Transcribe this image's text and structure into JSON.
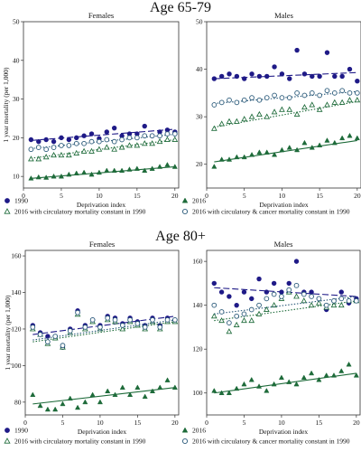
{
  "figure": {
    "sections": [
      {
        "title": "Age 65-79",
        "chart_index_start": 0
      },
      {
        "title": "Age 80+",
        "chart_index_start": 2
      }
    ],
    "legend": {
      "items": [
        {
          "key": "1990",
          "label": "1990",
          "marker": "filled-circle",
          "color": "#1f1a87"
        },
        {
          "key": "2016",
          "label": "2016",
          "marker": "filled-triangle",
          "color": "#1e6b3a"
        },
        {
          "key": "2016_circ",
          "label": "2016 with circulatory mortality constant in 1990",
          "marker": "open-triangle",
          "color": "#1e6b3a"
        },
        {
          "key": "2016_circ_cancer",
          "label": "2016 with circulatory & cancer mortality constant in 1990",
          "marker": "open-circle",
          "color": "#2a5a7a"
        }
      ]
    }
  },
  "chart_data": [
    {
      "type": "scatter",
      "section": "Age 65-79",
      "title": "Females",
      "xlabel": "Deprivation index",
      "ylabel": "1 year mortality (per 1,000)",
      "xlim": [
        0,
        20.5
      ],
      "ylim": [
        7,
        50
      ],
      "xticks": [
        0,
        5,
        10,
        15,
        20
      ],
      "yticks": [
        10,
        20,
        30,
        40,
        50
      ],
      "x": [
        1,
        2,
        3,
        4,
        5,
        6,
        7,
        8,
        9,
        10,
        11,
        12,
        13,
        14,
        15,
        16,
        17,
        18,
        19,
        20
      ],
      "series": [
        {
          "name": "1990",
          "values": [
            19.5,
            19.0,
            19.5,
            19.0,
            20.0,
            19.5,
            20.0,
            20.5,
            21.0,
            19.8,
            21.5,
            22.5,
            20.5,
            21.0,
            21.0,
            23.0,
            20.5,
            21.5,
            22.0,
            21.5
          ],
          "trend": [
            19.3,
            22.2
          ]
        },
        {
          "name": "2016",
          "values": [
            9.5,
            9.8,
            9.7,
            10.0,
            10.0,
            10.5,
            10.8,
            11.0,
            10.5,
            11.0,
            11.5,
            11.5,
            11.5,
            11.8,
            12.0,
            11.5,
            12.0,
            12.5,
            13.0,
            12.5
          ],
          "trend": [
            9.5,
            12.5
          ]
        },
        {
          "name": "2016 with circulatory mortality constant in 1990",
          "values": [
            14.5,
            14.5,
            15.0,
            15.5,
            15.5,
            15.5,
            16.0,
            16.5,
            16.5,
            17.0,
            17.5,
            17.0,
            17.5,
            18.0,
            18.0,
            18.5,
            18.5,
            19.0,
            19.5,
            19.5
          ],
          "trend": [
            14.7,
            19.5
          ]
        },
        {
          "name": "2016 with circulatory & cancer mortality constant in 1990",
          "values": [
            17.0,
            17.5,
            17.0,
            17.5,
            18.0,
            18.0,
            18.5,
            18.5,
            19.0,
            19.0,
            19.5,
            19.0,
            19.5,
            20.0,
            20.0,
            20.5,
            20.5,
            20.5,
            21.0,
            21.0
          ],
          "trend": [
            17.2,
            20.9
          ]
        }
      ]
    },
    {
      "type": "scatter",
      "section": "Age 65-79",
      "title": "Males",
      "xlabel": "Deprivation index",
      "ylabel": "",
      "xlim": [
        0,
        20.5
      ],
      "ylim": [
        15,
        50
      ],
      "xticks": [
        0,
        5,
        10,
        15,
        20
      ],
      "yticks": [
        20,
        30,
        40,
        50
      ],
      "x": [
        1,
        2,
        3,
        4,
        5,
        6,
        7,
        8,
        9,
        10,
        11,
        12,
        13,
        14,
        15,
        16,
        17,
        18,
        19,
        20
      ],
      "series": [
        {
          "name": "1990",
          "values": [
            38.0,
            38.5,
            39.0,
            38.5,
            38.0,
            39.0,
            38.5,
            38.5,
            40.5,
            39.0,
            38.0,
            44.0,
            39.0,
            38.5,
            38.5,
            43.5,
            38.5,
            38.5,
            40.0,
            37.5
          ],
          "trend": [
            38.0,
            39.3
          ]
        },
        {
          "name": "2016",
          "values": [
            19.5,
            21.0,
            21.0,
            21.5,
            21.5,
            22.0,
            22.5,
            22.5,
            22.0,
            23.0,
            23.5,
            23.0,
            24.5,
            23.5,
            24.0,
            25.0,
            24.5,
            25.5,
            26.0,
            25.5
          ],
          "trend": [
            20.5,
            25.0
          ]
        },
        {
          "name": "2016 with circulatory mortality constant in 1990",
          "values": [
            27.5,
            28.5,
            29.0,
            29.0,
            29.5,
            30.0,
            30.5,
            30.0,
            31.0,
            31.5,
            31.5,
            30.5,
            32.0,
            32.5,
            31.5,
            32.5,
            33.0,
            33.0,
            33.5,
            33.5
          ],
          "trend": [
            27.8,
            33.2
          ]
        },
        {
          "name": "2016 with circulatory & cancer mortality constant in 1990",
          "values": [
            32.5,
            33.0,
            33.5,
            33.0,
            33.5,
            34.0,
            33.5,
            34.0,
            34.5,
            34.0,
            34.0,
            35.0,
            34.5,
            35.0,
            34.5,
            35.5,
            35.0,
            35.5,
            35.0,
            35.0
          ],
          "trend": [
            32.8,
            35.3
          ]
        }
      ]
    },
    {
      "type": "scatter",
      "section": "Age 80+",
      "title": "Females",
      "xlabel": "Deprivation index",
      "ylabel": "1 year mortality (per 1,000)",
      "xlim": [
        0,
        20.5
      ],
      "ylim": [
        73,
        163
      ],
      "xticks": [
        0,
        5,
        10,
        15,
        20
      ],
      "yticks": [
        80,
        100,
        120,
        140,
        160
      ],
      "x": [
        1,
        2,
        3,
        4,
        5,
        6,
        7,
        8,
        9,
        10,
        11,
        12,
        13,
        14,
        15,
        16,
        17,
        18,
        19,
        20
      ],
      "series": [
        {
          "name": "1990",
          "values": [
            122,
            118,
            116,
            116,
            110,
            120,
            130,
            122,
            125,
            122,
            127,
            126,
            123,
            126,
            124,
            122,
            126,
            122,
            126,
            125
          ],
          "trend": [
            117,
            127
          ]
        },
        {
          "name": "2016",
          "values": [
            84,
            78,
            76,
            76,
            79,
            82,
            77,
            80,
            84,
            80,
            86,
            84,
            88,
            84,
            88,
            83,
            86,
            88,
            92,
            88
          ],
          "trend": [
            79,
            88
          ]
        },
        {
          "name": "2016 with circulatory mortality constant in 1990",
          "values": [
            120,
            117,
            112,
            115,
            110,
            118,
            128,
            120,
            124,
            120,
            125,
            124,
            120,
            124,
            122,
            120,
            124,
            120,
            124,
            124
          ],
          "trend": [
            113,
            124
          ]
        },
        {
          "name": "2016 with circulatory & cancer mortality constant in 1990",
          "values": [
            121,
            117,
            113,
            116,
            111,
            119,
            129,
            121,
            125,
            121,
            126,
            125,
            122,
            125,
            123,
            121,
            125,
            121,
            125,
            125
          ],
          "trend": [
            114,
            125
          ]
        }
      ]
    },
    {
      "type": "scatter",
      "section": "Age 80+",
      "title": "Males",
      "xlabel": "Deprivation index",
      "ylabel": "",
      "xlim": [
        0,
        20.5
      ],
      "ylim": [
        90,
        165
      ],
      "xticks": [
        0,
        5,
        10,
        15,
        20
      ],
      "yticks": [
        100,
        120,
        140,
        160
      ],
      "x": [
        1,
        2,
        3,
        4,
        5,
        6,
        7,
        8,
        9,
        10,
        11,
        12,
        13,
        14,
        15,
        16,
        17,
        18,
        19,
        20
      ],
      "series": [
        {
          "name": "1990",
          "values": [
            150,
            146,
            144,
            140,
            146,
            143,
            152,
            146,
            150,
            146,
            150,
            160,
            146,
            146,
            143,
            138,
            142,
            146,
            141,
            143
          ],
          "trend": [
            148,
            144
          ]
        },
        {
          "name": "2016",
          "values": [
            101,
            100,
            100,
            102,
            104,
            106,
            103,
            101,
            104,
            107,
            105,
            104,
            107,
            109,
            106,
            108,
            108,
            110,
            113,
            108
          ],
          "trend": [
            100,
            109
          ]
        },
        {
          "name": "2016 with circulatory mortality constant in 1990",
          "values": [
            135,
            133,
            128,
            131,
            133,
            133,
            136,
            138,
            140,
            143,
            146,
            144,
            142,
            140,
            141,
            139,
            140,
            140,
            142,
            142
          ],
          "trend": [
            133,
            142
          ]
        },
        {
          "name": "2016 with circulatory & cancer mortality constant in 1990",
          "values": [
            140,
            137,
            132,
            135,
            136,
            138,
            140,
            143,
            145,
            144,
            147,
            149,
            145,
            144,
            143,
            140,
            142,
            143,
            142,
            142
          ],
          "trend": [
            136,
            144
          ]
        }
      ]
    }
  ]
}
